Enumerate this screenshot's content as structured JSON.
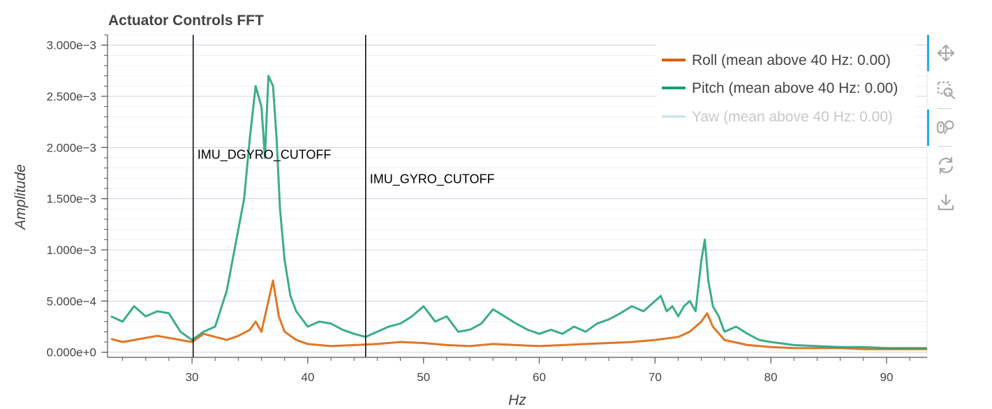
{
  "chart_data": {
    "type": "line",
    "title": "Actuator Controls FFT",
    "xlabel": "Hz",
    "ylabel": "Amplitude",
    "xlim": [
      22.7,
      93.5
    ],
    "ylim": [
      -5e-05,
      0.0031
    ],
    "x_ticks": [
      30,
      40,
      50,
      60,
      70,
      80,
      90
    ],
    "y_ticks": [
      0,
      0.0005,
      0.001,
      0.0015,
      0.002,
      0.0025,
      0.003
    ],
    "y_tick_labels": [
      "0.000e+0",
      "5.000e−4",
      "1.000e−3",
      "1.500e−3",
      "2.000e−3",
      "2.500e−3",
      "3.000e−3"
    ],
    "grid": true,
    "legend_position": "top-right",
    "vlines": [
      {
        "x": 30.1,
        "label": "IMU_DGYRO_CUTOFF",
        "label_y": 0.00189
      },
      {
        "x": 45.0,
        "label": "IMU_GYRO_CUTOFF",
        "label_y": 0.00165
      }
    ],
    "series": [
      {
        "name": "Roll (mean above 40 Hz: 0.00)",
        "color": "#d95f02",
        "visible": true,
        "x": [
          23,
          24,
          25,
          26,
          27,
          28,
          29,
          30,
          31,
          32,
          33,
          34,
          35,
          35.5,
          36,
          36.5,
          37,
          37.5,
          38,
          39,
          40,
          42,
          44,
          46,
          48,
          50,
          52,
          54,
          56,
          58,
          60,
          62,
          64,
          66,
          68,
          70,
          72,
          73,
          74,
          74.5,
          75,
          76,
          78,
          80,
          82,
          84,
          86,
          88,
          90,
          92,
          93.5
        ],
        "y": [
          0.00013,
          0.0001,
          0.00012,
          0.00014,
          0.00016,
          0.00014,
          0.00012,
          0.0001,
          0.00018,
          0.00015,
          0.00012,
          0.00016,
          0.00022,
          0.0003,
          0.0002,
          0.00045,
          0.0007,
          0.00035,
          0.0002,
          0.00012,
          8e-05,
          6e-05,
          7e-05,
          8e-05,
          0.0001,
          9e-05,
          7e-05,
          6e-05,
          8e-05,
          7e-05,
          6e-05,
          7e-05,
          8e-05,
          9e-05,
          0.0001,
          0.00012,
          0.00015,
          0.0002,
          0.0003,
          0.00038,
          0.00025,
          0.00012,
          7e-05,
          5e-05,
          4e-05,
          4e-05,
          4e-05,
          3e-05,
          3e-05,
          3e-05,
          3e-05
        ]
      },
      {
        "name": "Pitch (mean above 40 Hz: 0.00)",
        "color": "#1b9e77",
        "visible": true,
        "x": [
          23,
          24,
          25,
          26,
          27,
          28,
          29,
          30,
          31,
          32,
          33,
          34,
          34.5,
          35,
          35.5,
          36,
          36.3,
          36.6,
          37,
          37.3,
          37.6,
          38,
          38.5,
          39,
          40,
          41,
          42,
          43,
          44,
          45,
          46,
          47,
          48,
          49,
          50,
          51,
          52,
          53,
          54,
          55,
          56,
          57,
          58,
          59,
          60,
          61,
          62,
          63,
          64,
          65,
          66,
          67,
          68,
          69,
          70,
          70.5,
          71,
          71.5,
          72,
          72.5,
          73,
          73.5,
          74,
          74.3,
          74.6,
          75,
          75.5,
          76,
          77,
          78,
          79,
          80,
          82,
          84,
          86,
          88,
          90,
          92,
          93.5
        ],
        "y": [
          0.00035,
          0.0003,
          0.00045,
          0.00035,
          0.0004,
          0.00038,
          0.0002,
          0.00012,
          0.0002,
          0.00025,
          0.0006,
          0.0012,
          0.0015,
          0.0021,
          0.0026,
          0.0024,
          0.0019,
          0.0027,
          0.0026,
          0.0021,
          0.0014,
          0.0009,
          0.00055,
          0.0004,
          0.00025,
          0.0003,
          0.00028,
          0.00022,
          0.00018,
          0.00015,
          0.0002,
          0.00025,
          0.00028,
          0.00035,
          0.00045,
          0.0003,
          0.00035,
          0.0002,
          0.00022,
          0.00028,
          0.00042,
          0.00035,
          0.00028,
          0.00022,
          0.00018,
          0.00022,
          0.00018,
          0.00025,
          0.0002,
          0.00028,
          0.00032,
          0.00038,
          0.00045,
          0.0004,
          0.0005,
          0.00055,
          0.0004,
          0.00045,
          0.00035,
          0.00045,
          0.0005,
          0.0004,
          0.0009,
          0.0011,
          0.0007,
          0.00045,
          0.00035,
          0.0002,
          0.00025,
          0.00018,
          0.00012,
          0.0001,
          7e-05,
          6e-05,
          5e-05,
          5e-05,
          4e-05,
          4e-05,
          4e-05
        ]
      },
      {
        "name": "Yaw (mean above 40 Hz: 0.00)",
        "color": "#a6cee3",
        "visible": false,
        "x": [],
        "y": []
      }
    ]
  },
  "toolbar": {
    "tools": [
      {
        "icon": "pan-icon",
        "label": "Pan",
        "active": true
      },
      {
        "icon": "box-zoom-icon",
        "label": "Box Zoom",
        "active": false
      },
      {
        "icon": "wheel-zoom-icon",
        "label": "Wheel Zoom",
        "active": true
      },
      {
        "icon": "reset-icon",
        "label": "Reset",
        "active": false
      },
      {
        "icon": "save-icon",
        "label": "Save",
        "active": false
      }
    ]
  }
}
